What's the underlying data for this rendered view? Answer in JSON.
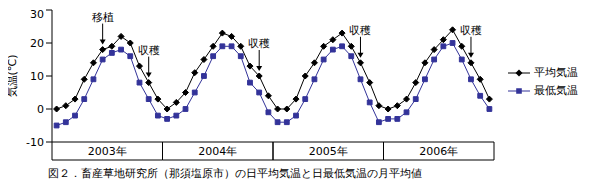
{
  "chart_data": {
    "type": "line",
    "title": "図２．畜産草地研究所（那須塩原市）の日平均気温と日最低気温の月平均値",
    "y_label": "気温(℃)",
    "categories": [
      null,
      null,
      null,
      null,
      null,
      "2003年",
      null,
      null,
      null,
      null,
      null,
      null,
      null,
      null,
      null,
      null,
      null,
      "2004年",
      null,
      null,
      null,
      null,
      null,
      null,
      null,
      null,
      null,
      null,
      null,
      "2005年",
      null,
      null,
      null,
      null,
      null,
      null,
      null,
      null,
      null,
      null,
      null,
      "2006年",
      null,
      null,
      null,
      null,
      null,
      null
    ],
    "series": [
      {
        "name": "平均気温",
        "color": "#000000",
        "marker": "diamond",
        "values": [
          0,
          1,
          3,
          9,
          14,
          18,
          19,
          22,
          20,
          13,
          8,
          3,
          0,
          2,
          5,
          11,
          15,
          19,
          23,
          22,
          19,
          13,
          10,
          4,
          0,
          0,
          3,
          10,
          14,
          19,
          21,
          23,
          19,
          14,
          8,
          1,
          0,
          1,
          3,
          8,
          14,
          18,
          21,
          24,
          19,
          14,
          9,
          3
        ]
      },
      {
        "name": "最低気温",
        "color": "#333399",
        "marker": "square",
        "values": [
          -5,
          -4,
          -2,
          3,
          9,
          15,
          17,
          18,
          16,
          8,
          3,
          -2,
          -3,
          -2,
          0,
          5,
          10,
          16,
          19,
          19,
          16,
          8,
          5,
          -1,
          -4,
          -4,
          -2,
          3,
          9,
          15,
          18,
          19,
          16,
          9,
          2,
          -4,
          -3,
          -3,
          -1,
          3,
          9,
          15,
          19,
          20,
          15,
          9,
          4,
          0
        ]
      }
    ],
    "ylim": [
      -10,
      30
    ],
    "yticks": [
      -10,
      0,
      10,
      20,
      30
    ],
    "annotations": [
      {
        "text": "移植",
        "x": 5
      },
      {
        "text": "収穫",
        "x": 10
      },
      {
        "text": "収穫",
        "x": 22
      },
      {
        "text": "収穫",
        "x": 33
      },
      {
        "text": "収穫",
        "x": 45
      }
    ],
    "grid": false,
    "legend": "right"
  }
}
